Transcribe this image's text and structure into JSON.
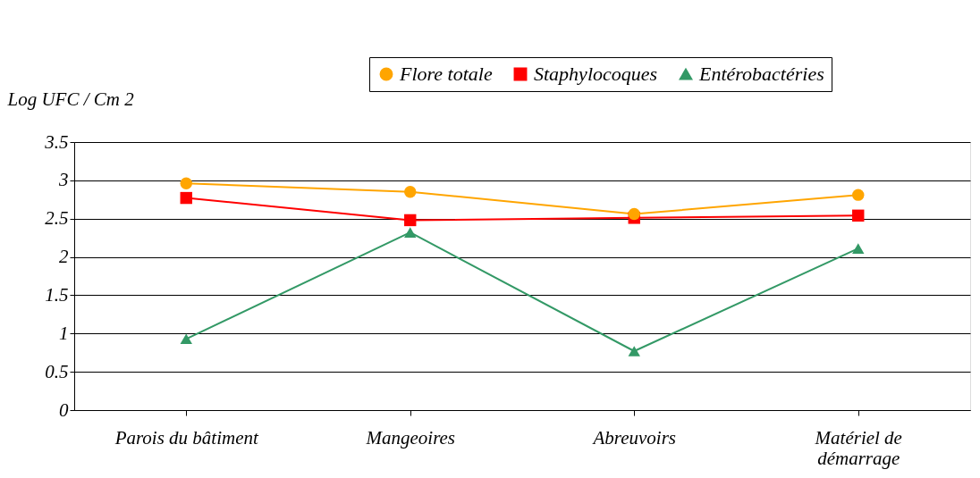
{
  "chart_data": {
    "type": "line",
    "ylabel": "Log UFC / Cm 2",
    "categories": [
      "Parois du bâtiment",
      "Mangeoires",
      "Abreuvoirs",
      "Matériel de\ndémarrage"
    ],
    "series": [
      {
        "name": "Flore totale",
        "color": "#ffa500",
        "marker": "circle",
        "values": [
          2.96,
          2.85,
          2.56,
          2.81
        ]
      },
      {
        "name": "Staphylocoques",
        "color": "#ff0000",
        "marker": "square",
        "values": [
          2.77,
          2.48,
          2.51,
          2.54
        ]
      },
      {
        "name": "Entérobactéries",
        "color": "#339966",
        "marker": "triangle",
        "values": [
          0.93,
          2.32,
          0.77,
          2.11
        ]
      }
    ],
    "ylim": [
      0,
      3.5
    ],
    "yticks": [
      0,
      0.5,
      1,
      1.5,
      2,
      2.5,
      3,
      3.5
    ],
    "grid": "y",
    "legend": "top right",
    "line_style": "solid"
  }
}
